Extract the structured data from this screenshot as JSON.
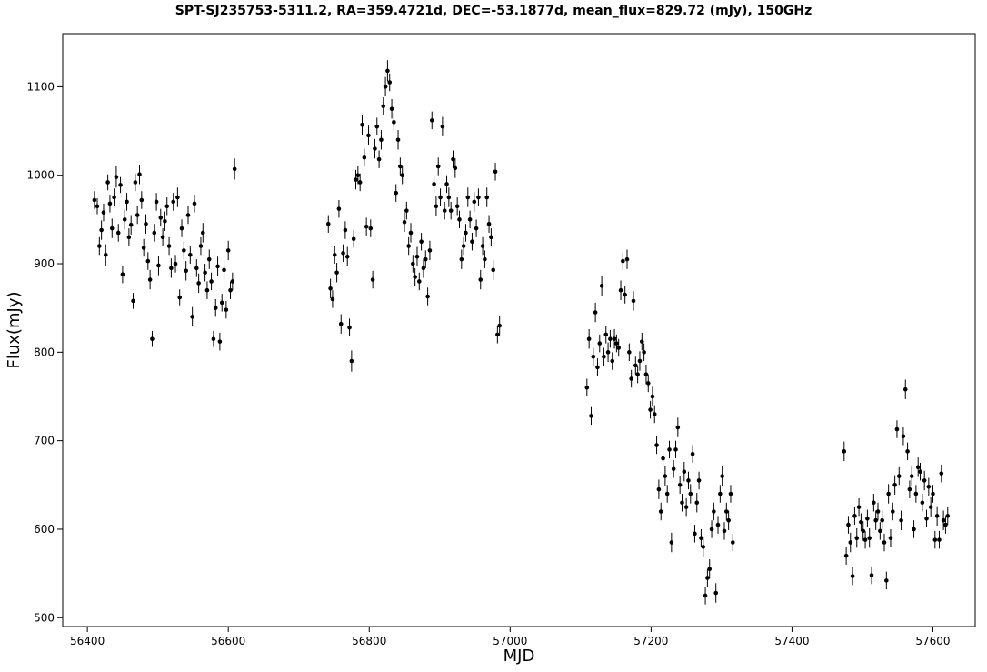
{
  "chart_data": {
    "type": "scatter",
    "title": "SPT-SJ235753-5311.2, RA=359.4721d, DEC=-53.1877d, mean_flux=829.72 (mJy), 150GHz",
    "xlabel": "MJD",
    "ylabel": "Flux(mJy)",
    "xlim": [
      56365,
      57660
    ],
    "ylim": [
      490,
      1160
    ],
    "xticks": [
      56400,
      56600,
      56800,
      57000,
      57200,
      57400,
      57600
    ],
    "yticks": [
      500,
      600,
      700,
      800,
      900,
      1000,
      1100
    ],
    "grid": false,
    "error_bars": true,
    "marker_color": "#000000",
    "points": [
      {
        "x": 56410,
        "y": 972,
        "e": 10
      },
      {
        "x": 56414,
        "y": 965,
        "e": 9
      },
      {
        "x": 56417,
        "y": 920,
        "e": 10
      },
      {
        "x": 56420,
        "y": 938,
        "e": 11
      },
      {
        "x": 56423,
        "y": 958,
        "e": 10
      },
      {
        "x": 56426,
        "y": 910,
        "e": 12
      },
      {
        "x": 56429,
        "y": 992,
        "e": 9
      },
      {
        "x": 56432,
        "y": 968,
        "e": 10
      },
      {
        "x": 56435,
        "y": 940,
        "e": 11
      },
      {
        "x": 56438,
        "y": 975,
        "e": 10
      },
      {
        "x": 56441,
        "y": 998,
        "e": 12
      },
      {
        "x": 56444,
        "y": 935,
        "e": 10
      },
      {
        "x": 56447,
        "y": 989,
        "e": 9
      },
      {
        "x": 56450,
        "y": 888,
        "e": 10
      },
      {
        "x": 56453,
        "y": 950,
        "e": 11
      },
      {
        "x": 56456,
        "y": 970,
        "e": 10
      },
      {
        "x": 56459,
        "y": 930,
        "e": 10
      },
      {
        "x": 56462,
        "y": 944,
        "e": 11
      },
      {
        "x": 56465,
        "y": 858,
        "e": 9
      },
      {
        "x": 56468,
        "y": 992,
        "e": 10
      },
      {
        "x": 56471,
        "y": 955,
        "e": 10
      },
      {
        "x": 56474,
        "y": 1001,
        "e": 11
      },
      {
        "x": 56477,
        "y": 972,
        "e": 10
      },
      {
        "x": 56480,
        "y": 918,
        "e": 10
      },
      {
        "x": 56483,
        "y": 945,
        "e": 11
      },
      {
        "x": 56486,
        "y": 903,
        "e": 10
      },
      {
        "x": 56489,
        "y": 882,
        "e": 11
      },
      {
        "x": 56492,
        "y": 815,
        "e": 9
      },
      {
        "x": 56495,
        "y": 935,
        "e": 10
      },
      {
        "x": 56498,
        "y": 970,
        "e": 10
      },
      {
        "x": 56501,
        "y": 898,
        "e": 11
      },
      {
        "x": 56504,
        "y": 952,
        "e": 10
      },
      {
        "x": 56507,
        "y": 930,
        "e": 10
      },
      {
        "x": 56510,
        "y": 948,
        "e": 11
      },
      {
        "x": 56513,
        "y": 965,
        "e": 10
      },
      {
        "x": 56516,
        "y": 920,
        "e": 10
      },
      {
        "x": 56519,
        "y": 895,
        "e": 11
      },
      {
        "x": 56522,
        "y": 970,
        "e": 10
      },
      {
        "x": 56525,
        "y": 900,
        "e": 10
      },
      {
        "x": 56528,
        "y": 975,
        "e": 11
      },
      {
        "x": 56531,
        "y": 862,
        "e": 9
      },
      {
        "x": 56534,
        "y": 940,
        "e": 10
      },
      {
        "x": 56537,
        "y": 915,
        "e": 10
      },
      {
        "x": 56540,
        "y": 892,
        "e": 11
      },
      {
        "x": 56543,
        "y": 955,
        "e": 10
      },
      {
        "x": 56546,
        "y": 910,
        "e": 10
      },
      {
        "x": 56549,
        "y": 840,
        "e": 11
      },
      {
        "x": 56552,
        "y": 968,
        "e": 10
      },
      {
        "x": 56555,
        "y": 895,
        "e": 10
      },
      {
        "x": 56558,
        "y": 878,
        "e": 11
      },
      {
        "x": 56561,
        "y": 920,
        "e": 10
      },
      {
        "x": 56564,
        "y": 935,
        "e": 11
      },
      {
        "x": 56567,
        "y": 890,
        "e": 10
      },
      {
        "x": 56570,
        "y": 870,
        "e": 10
      },
      {
        "x": 56573,
        "y": 905,
        "e": 11
      },
      {
        "x": 56576,
        "y": 880,
        "e": 10
      },
      {
        "x": 56579,
        "y": 815,
        "e": 9
      },
      {
        "x": 56582,
        "y": 850,
        "e": 10
      },
      {
        "x": 56585,
        "y": 897,
        "e": 11
      },
      {
        "x": 56588,
        "y": 812,
        "e": 10
      },
      {
        "x": 56591,
        "y": 856,
        "e": 10
      },
      {
        "x": 56594,
        "y": 893,
        "e": 11
      },
      {
        "x": 56597,
        "y": 848,
        "e": 10
      },
      {
        "x": 56600,
        "y": 915,
        "e": 11
      },
      {
        "x": 56603,
        "y": 870,
        "e": 10
      },
      {
        "x": 56606,
        "y": 880,
        "e": 10
      },
      {
        "x": 56609,
        "y": 1007,
        "e": 12
      },
      {
        "x": 56742,
        "y": 945,
        "e": 10
      },
      {
        "x": 56745,
        "y": 872,
        "e": 11
      },
      {
        "x": 56748,
        "y": 860,
        "e": 10
      },
      {
        "x": 56751,
        "y": 910,
        "e": 10
      },
      {
        "x": 56754,
        "y": 890,
        "e": 11
      },
      {
        "x": 56757,
        "y": 962,
        "e": 10
      },
      {
        "x": 56760,
        "y": 832,
        "e": 11
      },
      {
        "x": 56763,
        "y": 912,
        "e": 10
      },
      {
        "x": 56766,
        "y": 938,
        "e": 10
      },
      {
        "x": 56769,
        "y": 908,
        "e": 11
      },
      {
        "x": 56772,
        "y": 828,
        "e": 10
      },
      {
        "x": 56775,
        "y": 790,
        "e": 12
      },
      {
        "x": 56778,
        "y": 928,
        "e": 10
      },
      {
        "x": 56781,
        "y": 995,
        "e": 11
      },
      {
        "x": 56784,
        "y": 1000,
        "e": 10
      },
      {
        "x": 56787,
        "y": 992,
        "e": 10
      },
      {
        "x": 56790,
        "y": 1057,
        "e": 11
      },
      {
        "x": 56793,
        "y": 1020,
        "e": 10
      },
      {
        "x": 56796,
        "y": 942,
        "e": 10
      },
      {
        "x": 56799,
        "y": 1045,
        "e": 11
      },
      {
        "x": 56802,
        "y": 940,
        "e": 10
      },
      {
        "x": 56805,
        "y": 882,
        "e": 10
      },
      {
        "x": 56808,
        "y": 1030,
        "e": 11
      },
      {
        "x": 56811,
        "y": 1055,
        "e": 10
      },
      {
        "x": 56814,
        "y": 1018,
        "e": 10
      },
      {
        "x": 56817,
        "y": 1040,
        "e": 11
      },
      {
        "x": 56820,
        "y": 1078,
        "e": 10
      },
      {
        "x": 56823,
        "y": 1100,
        "e": 11
      },
      {
        "x": 56826,
        "y": 1118,
        "e": 12
      },
      {
        "x": 56829,
        "y": 1105,
        "e": 10
      },
      {
        "x": 56832,
        "y": 1075,
        "e": 11
      },
      {
        "x": 56835,
        "y": 1060,
        "e": 10
      },
      {
        "x": 56838,
        "y": 980,
        "e": 10
      },
      {
        "x": 56841,
        "y": 1040,
        "e": 11
      },
      {
        "x": 56844,
        "y": 1010,
        "e": 10
      },
      {
        "x": 56847,
        "y": 1000,
        "e": 10
      },
      {
        "x": 56850,
        "y": 947,
        "e": 11
      },
      {
        "x": 56853,
        "y": 960,
        "e": 10
      },
      {
        "x": 56856,
        "y": 920,
        "e": 10
      },
      {
        "x": 56859,
        "y": 935,
        "e": 11
      },
      {
        "x": 56862,
        "y": 900,
        "e": 10
      },
      {
        "x": 56865,
        "y": 885,
        "e": 10
      },
      {
        "x": 56868,
        "y": 908,
        "e": 11
      },
      {
        "x": 56871,
        "y": 880,
        "e": 10
      },
      {
        "x": 56874,
        "y": 925,
        "e": 10
      },
      {
        "x": 56877,
        "y": 895,
        "e": 11
      },
      {
        "x": 56880,
        "y": 905,
        "e": 10
      },
      {
        "x": 56883,
        "y": 863,
        "e": 10
      },
      {
        "x": 56886,
        "y": 915,
        "e": 11
      },
      {
        "x": 56889,
        "y": 1062,
        "e": 10
      },
      {
        "x": 56892,
        "y": 990,
        "e": 10
      },
      {
        "x": 56895,
        "y": 965,
        "e": 11
      },
      {
        "x": 56898,
        "y": 1010,
        "e": 10
      },
      {
        "x": 56901,
        "y": 975,
        "e": 10
      },
      {
        "x": 56904,
        "y": 1055,
        "e": 11
      },
      {
        "x": 56907,
        "y": 960,
        "e": 10
      },
      {
        "x": 56910,
        "y": 990,
        "e": 10
      },
      {
        "x": 56913,
        "y": 975,
        "e": 11
      },
      {
        "x": 56916,
        "y": 960,
        "e": 10
      },
      {
        "x": 56919,
        "y": 1018,
        "e": 10
      },
      {
        "x": 56922,
        "y": 1008,
        "e": 11
      },
      {
        "x": 56925,
        "y": 965,
        "e": 10
      },
      {
        "x": 56928,
        "y": 950,
        "e": 10
      },
      {
        "x": 56931,
        "y": 905,
        "e": 11
      },
      {
        "x": 56934,
        "y": 920,
        "e": 10
      },
      {
        "x": 56937,
        "y": 935,
        "e": 10
      },
      {
        "x": 56940,
        "y": 975,
        "e": 11
      },
      {
        "x": 56943,
        "y": 950,
        "e": 10
      },
      {
        "x": 56946,
        "y": 925,
        "e": 10
      },
      {
        "x": 56949,
        "y": 970,
        "e": 11
      },
      {
        "x": 56952,
        "y": 940,
        "e": 10
      },
      {
        "x": 56955,
        "y": 975,
        "e": 10
      },
      {
        "x": 56958,
        "y": 882,
        "e": 11
      },
      {
        "x": 56961,
        "y": 920,
        "e": 10
      },
      {
        "x": 56964,
        "y": 905,
        "e": 10
      },
      {
        "x": 56967,
        "y": 975,
        "e": 11
      },
      {
        "x": 56970,
        "y": 945,
        "e": 10
      },
      {
        "x": 56973,
        "y": 930,
        "e": 10
      },
      {
        "x": 56976,
        "y": 893,
        "e": 11
      },
      {
        "x": 56979,
        "y": 1004,
        "e": 10
      },
      {
        "x": 56982,
        "y": 820,
        "e": 10
      },
      {
        "x": 56985,
        "y": 830,
        "e": 11
      },
      {
        "x": 57109,
        "y": 760,
        "e": 10
      },
      {
        "x": 57112,
        "y": 815,
        "e": 11
      },
      {
        "x": 57115,
        "y": 728,
        "e": 10
      },
      {
        "x": 57118,
        "y": 795,
        "e": 10
      },
      {
        "x": 57121,
        "y": 845,
        "e": 11
      },
      {
        "x": 57124,
        "y": 783,
        "e": 10
      },
      {
        "x": 57127,
        "y": 810,
        "e": 10
      },
      {
        "x": 57130,
        "y": 875,
        "e": 11
      },
      {
        "x": 57133,
        "y": 795,
        "e": 10
      },
      {
        "x": 57136,
        "y": 820,
        "e": 10
      },
      {
        "x": 57139,
        "y": 800,
        "e": 11
      },
      {
        "x": 57142,
        "y": 815,
        "e": 10
      },
      {
        "x": 57145,
        "y": 790,
        "e": 10
      },
      {
        "x": 57148,
        "y": 815,
        "e": 11
      },
      {
        "x": 57151,
        "y": 810,
        "e": 10
      },
      {
        "x": 57154,
        "y": 805,
        "e": 10
      },
      {
        "x": 57157,
        "y": 870,
        "e": 11
      },
      {
        "x": 57160,
        "y": 903,
        "e": 10
      },
      {
        "x": 57163,
        "y": 865,
        "e": 10
      },
      {
        "x": 57166,
        "y": 905,
        "e": 11
      },
      {
        "x": 57169,
        "y": 800,
        "e": 10
      },
      {
        "x": 57172,
        "y": 770,
        "e": 10
      },
      {
        "x": 57175,
        "y": 858,
        "e": 11
      },
      {
        "x": 57178,
        "y": 785,
        "e": 10
      },
      {
        "x": 57181,
        "y": 775,
        "e": 10
      },
      {
        "x": 57184,
        "y": 790,
        "e": 11
      },
      {
        "x": 57187,
        "y": 812,
        "e": 10
      },
      {
        "x": 57190,
        "y": 800,
        "e": 10
      },
      {
        "x": 57193,
        "y": 775,
        "e": 11
      },
      {
        "x": 57196,
        "y": 765,
        "e": 10
      },
      {
        "x": 57199,
        "y": 735,
        "e": 10
      },
      {
        "x": 57202,
        "y": 750,
        "e": 11
      },
      {
        "x": 57205,
        "y": 730,
        "e": 10
      },
      {
        "x": 57208,
        "y": 695,
        "e": 10
      },
      {
        "x": 57211,
        "y": 645,
        "e": 11
      },
      {
        "x": 57214,
        "y": 620,
        "e": 10
      },
      {
        "x": 57217,
        "y": 680,
        "e": 10
      },
      {
        "x": 57220,
        "y": 660,
        "e": 11
      },
      {
        "x": 57223,
        "y": 640,
        "e": 10
      },
      {
        "x": 57226,
        "y": 690,
        "e": 10
      },
      {
        "x": 57229,
        "y": 585,
        "e": 11
      },
      {
        "x": 57232,
        "y": 668,
        "e": 10
      },
      {
        "x": 57235,
        "y": 690,
        "e": 10
      },
      {
        "x": 57238,
        "y": 715,
        "e": 11
      },
      {
        "x": 57241,
        "y": 650,
        "e": 10
      },
      {
        "x": 57244,
        "y": 630,
        "e": 10
      },
      {
        "x": 57247,
        "y": 665,
        "e": 11
      },
      {
        "x": 57250,
        "y": 625,
        "e": 10
      },
      {
        "x": 57253,
        "y": 655,
        "e": 10
      },
      {
        "x": 57256,
        "y": 640,
        "e": 11
      },
      {
        "x": 57259,
        "y": 685,
        "e": 10
      },
      {
        "x": 57262,
        "y": 595,
        "e": 10
      },
      {
        "x": 57265,
        "y": 630,
        "e": 11
      },
      {
        "x": 57268,
        "y": 655,
        "e": 10
      },
      {
        "x": 57271,
        "y": 590,
        "e": 10
      },
      {
        "x": 57274,
        "y": 580,
        "e": 11
      },
      {
        "x": 57277,
        "y": 525,
        "e": 10
      },
      {
        "x": 57280,
        "y": 545,
        "e": 10
      },
      {
        "x": 57283,
        "y": 555,
        "e": 11
      },
      {
        "x": 57286,
        "y": 600,
        "e": 10
      },
      {
        "x": 57289,
        "y": 620,
        "e": 10
      },
      {
        "x": 57292,
        "y": 528,
        "e": 11
      },
      {
        "x": 57295,
        "y": 605,
        "e": 10
      },
      {
        "x": 57298,
        "y": 640,
        "e": 10
      },
      {
        "x": 57301,
        "y": 660,
        "e": 11
      },
      {
        "x": 57304,
        "y": 598,
        "e": 10
      },
      {
        "x": 57307,
        "y": 620,
        "e": 10
      },
      {
        "x": 57310,
        "y": 610,
        "e": 11
      },
      {
        "x": 57313,
        "y": 640,
        "e": 10
      },
      {
        "x": 57316,
        "y": 585,
        "e": 10
      },
      {
        "x": 57474,
        "y": 688,
        "e": 11
      },
      {
        "x": 57477,
        "y": 570,
        "e": 10
      },
      {
        "x": 57480,
        "y": 605,
        "e": 10
      },
      {
        "x": 57483,
        "y": 585,
        "e": 11
      },
      {
        "x": 57486,
        "y": 547,
        "e": 10
      },
      {
        "x": 57489,
        "y": 615,
        "e": 10
      },
      {
        "x": 57492,
        "y": 590,
        "e": 11
      },
      {
        "x": 57495,
        "y": 625,
        "e": 10
      },
      {
        "x": 57498,
        "y": 608,
        "e": 10
      },
      {
        "x": 57501,
        "y": 598,
        "e": 11
      },
      {
        "x": 57504,
        "y": 588,
        "e": 10
      },
      {
        "x": 57507,
        "y": 612,
        "e": 10
      },
      {
        "x": 57510,
        "y": 590,
        "e": 11
      },
      {
        "x": 57513,
        "y": 548,
        "e": 10
      },
      {
        "x": 57516,
        "y": 630,
        "e": 10
      },
      {
        "x": 57519,
        "y": 610,
        "e": 11
      },
      {
        "x": 57522,
        "y": 620,
        "e": 10
      },
      {
        "x": 57525,
        "y": 598,
        "e": 10
      },
      {
        "x": 57528,
        "y": 610,
        "e": 11
      },
      {
        "x": 57531,
        "y": 585,
        "e": 10
      },
      {
        "x": 57534,
        "y": 542,
        "e": 10
      },
      {
        "x": 57537,
        "y": 640,
        "e": 11
      },
      {
        "x": 57540,
        "y": 590,
        "e": 10
      },
      {
        "x": 57543,
        "y": 620,
        "e": 10
      },
      {
        "x": 57546,
        "y": 650,
        "e": 11
      },
      {
        "x": 57549,
        "y": 713,
        "e": 10
      },
      {
        "x": 57552,
        "y": 660,
        "e": 10
      },
      {
        "x": 57555,
        "y": 610,
        "e": 11
      },
      {
        "x": 57558,
        "y": 705,
        "e": 10
      },
      {
        "x": 57561,
        "y": 758,
        "e": 11
      },
      {
        "x": 57564,
        "y": 688,
        "e": 10
      },
      {
        "x": 57567,
        "y": 645,
        "e": 10
      },
      {
        "x": 57570,
        "y": 660,
        "e": 11
      },
      {
        "x": 57573,
        "y": 600,
        "e": 10
      },
      {
        "x": 57576,
        "y": 640,
        "e": 10
      },
      {
        "x": 57579,
        "y": 670,
        "e": 11
      },
      {
        "x": 57582,
        "y": 665,
        "e": 10
      },
      {
        "x": 57585,
        "y": 630,
        "e": 10
      },
      {
        "x": 57588,
        "y": 655,
        "e": 11
      },
      {
        "x": 57591,
        "y": 612,
        "e": 10
      },
      {
        "x": 57594,
        "y": 648,
        "e": 10
      },
      {
        "x": 57597,
        "y": 625,
        "e": 11
      },
      {
        "x": 57600,
        "y": 640,
        "e": 10
      },
      {
        "x": 57603,
        "y": 588,
        "e": 10
      },
      {
        "x": 57606,
        "y": 615,
        "e": 11
      },
      {
        "x": 57609,
        "y": 588,
        "e": 10
      },
      {
        "x": 57612,
        "y": 663,
        "e": 10
      },
      {
        "x": 57615,
        "y": 610,
        "e": 11
      },
      {
        "x": 57618,
        "y": 605,
        "e": 10
      },
      {
        "x": 57621,
        "y": 615,
        "e": 10
      }
    ]
  }
}
